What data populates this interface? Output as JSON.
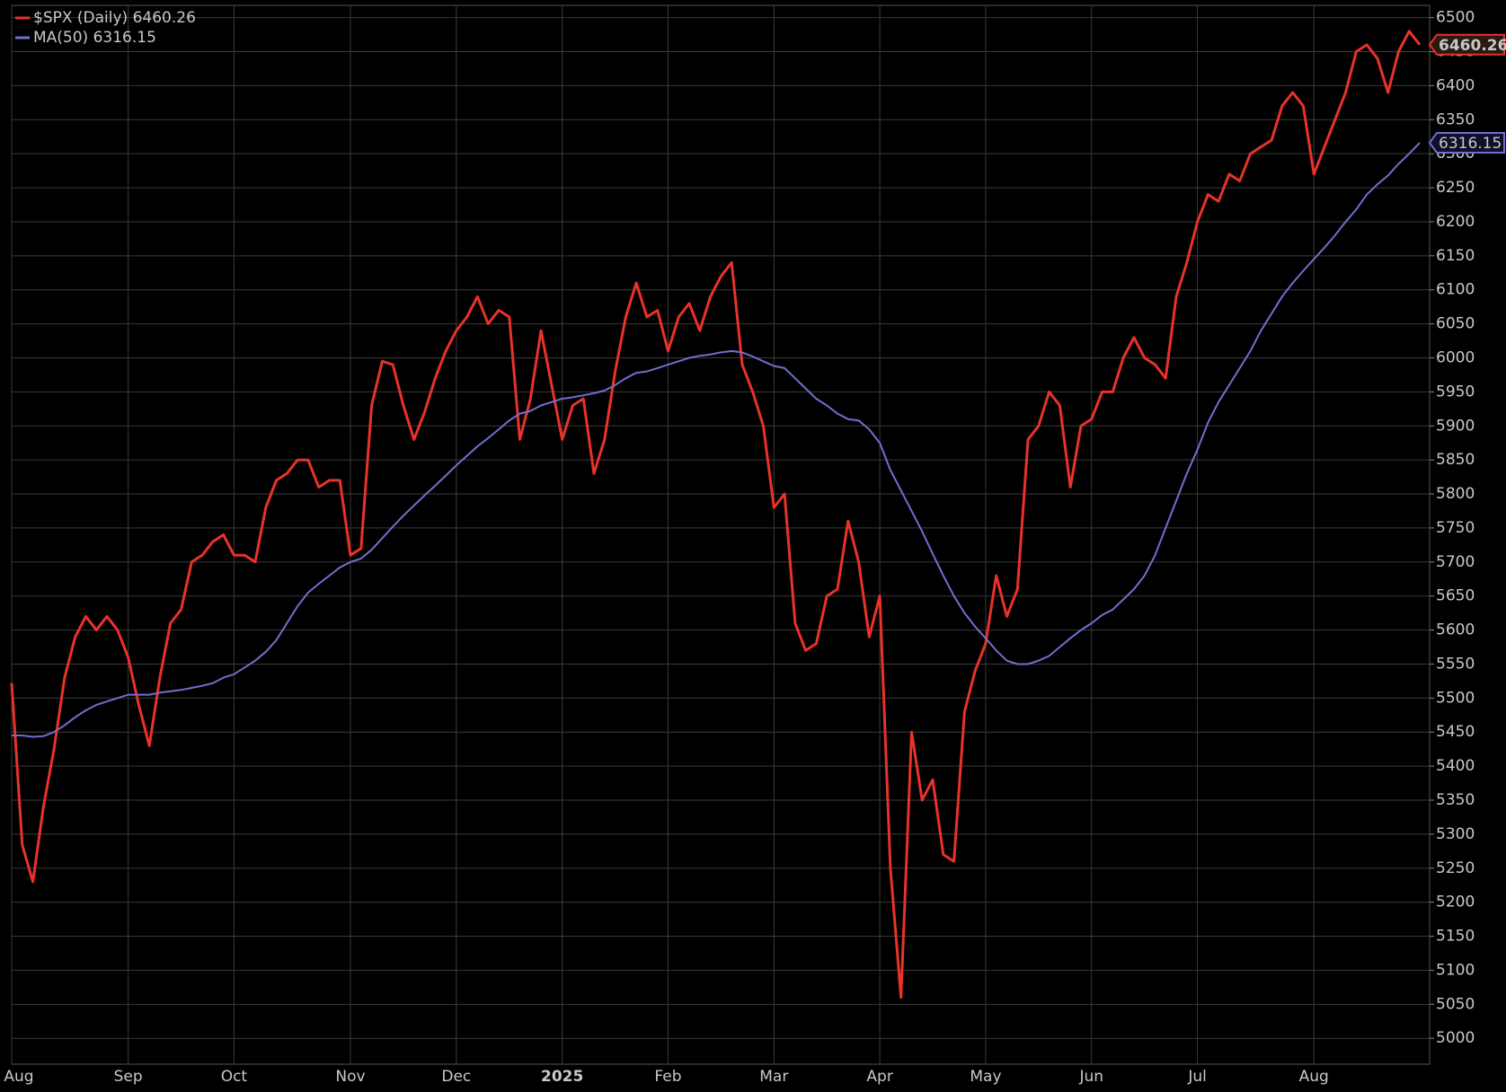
{
  "chart_data": {
    "type": "line",
    "categories": [
      "Aug",
      null,
      null,
      null,
      null,
      null,
      null,
      null,
      null,
      null,
      null,
      "Sep",
      null,
      null,
      null,
      null,
      null,
      null,
      null,
      null,
      null,
      "Oct",
      null,
      null,
      null,
      null,
      null,
      null,
      null,
      null,
      null,
      null,
      "Nov",
      null,
      null,
      null,
      null,
      null,
      null,
      null,
      null,
      null,
      "Dec",
      null,
      null,
      null,
      null,
      null,
      null,
      null,
      null,
      null,
      "2025",
      null,
      null,
      null,
      null,
      null,
      null,
      null,
      null,
      null,
      "Feb",
      null,
      null,
      null,
      null,
      null,
      null,
      null,
      null,
      null,
      "Mar",
      null,
      null,
      null,
      null,
      null,
      null,
      null,
      null,
      null,
      "Apr",
      null,
      null,
      null,
      null,
      null,
      null,
      null,
      null,
      null,
      "May",
      null,
      null,
      null,
      null,
      null,
      null,
      null,
      null,
      null,
      "Jun",
      null,
      null,
      null,
      null,
      null,
      null,
      null,
      null,
      null,
      "Jul",
      null,
      null,
      null,
      null,
      null,
      null,
      null,
      null,
      null,
      null,
      "Aug",
      null,
      null,
      null,
      null,
      null,
      null,
      null,
      null,
      null,
      null
    ],
    "series": [
      {
        "name": "$SPX (Daily)",
        "color": "#e8322a",
        "values": [
          5522,
          5284,
          5230,
          5340,
          5425,
          5530,
          5590,
          5620,
          5600,
          5620,
          5600,
          5560,
          5490,
          5430,
          5530,
          5610,
          5630,
          5700,
          5710,
          5730,
          5740,
          5710,
          5710,
          5700,
          5780,
          5820,
          5830,
          5850,
          5850,
          5810,
          5820,
          5820,
          5710,
          5720,
          5930,
          5995,
          5990,
          5930,
          5880,
          5920,
          5970,
          6010,
          6040,
          6060,
          6090,
          6050,
          6070,
          6060,
          5880,
          5940,
          6040,
          5960,
          5880,
          5930,
          5940,
          5830,
          5880,
          5980,
          6060,
          6110,
          6060,
          6070,
          6010,
          6060,
          6080,
          6040,
          6090,
          6120,
          6140,
          5990,
          5950,
          5900,
          5780,
          5800,
          5610,
          5570,
          5580,
          5650,
          5660,
          5760,
          5700,
          5590,
          5650,
          5250,
          5060,
          5450,
          5350,
          5380,
          5270,
          5260,
          5480,
          5540,
          5580,
          5680,
          5620,
          5660,
          5880,
          5900,
          5950,
          5930,
          5810,
          5900,
          5910,
          5950,
          5950,
          6000,
          6030,
          6000,
          5990,
          5970,
          6090,
          6140,
          6200,
          6240,
          6230,
          6270,
          6260,
          6300,
          6310,
          6320,
          6370,
          6390,
          6370,
          6270,
          6310,
          6350,
          6390,
          6450,
          6460,
          6440,
          6390,
          6450,
          6480,
          6460.26
        ]
      },
      {
        "name": "MA(50)",
        "color": "#6f6fd0",
        "values": [
          5445,
          5445,
          5443,
          5444,
          5450,
          5460,
          5472,
          5482,
          5490,
          5495,
          5500,
          5505,
          5505,
          5505,
          5508,
          5510,
          5512,
          5515,
          5518,
          5522,
          5530,
          5535,
          5545,
          5555,
          5568,
          5585,
          5610,
          5635,
          5655,
          5668,
          5680,
          5692,
          5700,
          5705,
          5718,
          5735,
          5752,
          5768,
          5783,
          5798,
          5812,
          5827,
          5842,
          5856,
          5870,
          5882,
          5895,
          5908,
          5918,
          5922,
          5930,
          5935,
          5940,
          5942,
          5945,
          5948,
          5952,
          5960,
          5970,
          5978,
          5980,
          5985,
          5990,
          5995,
          6000,
          6003,
          6005,
          6008,
          6010,
          6008,
          6002,
          5995,
          5988,
          5985,
          5970,
          5955,
          5940,
          5930,
          5918,
          5910,
          5908,
          5895,
          5875,
          5835,
          5805,
          5775,
          5745,
          5712,
          5680,
          5650,
          5625,
          5605,
          5588,
          5570,
          5555,
          5550,
          5550,
          5555,
          5562,
          5575,
          5588,
          5600,
          5610,
          5622,
          5630,
          5645,
          5660,
          5680,
          5710,
          5750,
          5790,
          5830,
          5865,
          5905,
          5935,
          5960,
          5985,
          6010,
          6040,
          6065,
          6090,
          6110,
          6128,
          6145,
          6162,
          6180,
          6200,
          6218,
          6240,
          6255,
          6268,
          6285,
          6300,
          6316.15
        ]
      }
    ],
    "ylim": [
      4962,
      6518
    ],
    "yticks": [
      5000,
      5050,
      5100,
      5150,
      5200,
      5250,
      5300,
      5350,
      5400,
      5450,
      5500,
      5550,
      5600,
      5650,
      5700,
      5750,
      5800,
      5850,
      5900,
      5950,
      6000,
      6050,
      6100,
      6150,
      6200,
      6250,
      6300,
      6350,
      6400,
      6450,
      6500
    ],
    "grid": true
  }
}
